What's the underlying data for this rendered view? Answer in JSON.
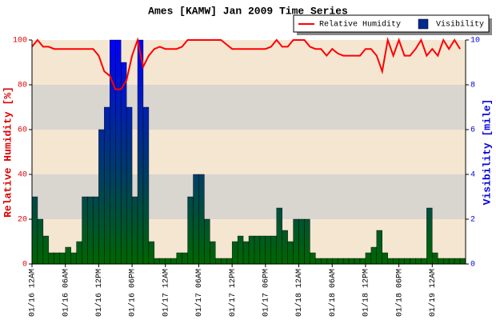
{
  "chart_data": {
    "type": "combo",
    "title": "Ames [KAMW] Jan 2009 Time Series",
    "ylabel": "Relative Humidity [%]",
    "y2label": "Visibility [mile]",
    "x": [
      0,
      1,
      2,
      3,
      4,
      5,
      6,
      7,
      8,
      9,
      10,
      11,
      12,
      13,
      14,
      15,
      16,
      17,
      18,
      19,
      20,
      21,
      22,
      23,
      24,
      25,
      26,
      27,
      28,
      29,
      30,
      31,
      32,
      33,
      34,
      35,
      36,
      37,
      38,
      39,
      40,
      41,
      42,
      43,
      44,
      45,
      46,
      47,
      48,
      49,
      50,
      51,
      52,
      53,
      54,
      55,
      56,
      57,
      58,
      59,
      60,
      61,
      62,
      63,
      64,
      65,
      66,
      67,
      68,
      69,
      70,
      71,
      72,
      73,
      74,
      75,
      76,
      77
    ],
    "xlim": [
      0,
      78
    ],
    "xticks": [
      {
        "value": 0,
        "label": "01/16 12AM"
      },
      {
        "value": 6,
        "label": "01/16 06AM"
      },
      {
        "value": 12,
        "label": "01/16 12PM"
      },
      {
        "value": 18,
        "label": "01/16 06PM"
      },
      {
        "value": 24,
        "label": "01/17 12AM"
      },
      {
        "value": 30,
        "label": "01/17 06AM"
      },
      {
        "value": 36,
        "label": "01/17 12PM"
      },
      {
        "value": 42,
        "label": "01/17 06PM"
      },
      {
        "value": 48,
        "label": "01/18 12AM"
      },
      {
        "value": 54,
        "label": "01/18 06AM"
      },
      {
        "value": 60,
        "label": "01/18 12PM"
      },
      {
        "value": 66,
        "label": "01/18 06PM"
      },
      {
        "value": 72,
        "label": "01/19 12AM"
      }
    ],
    "ylim": [
      0,
      100
    ],
    "yticks": [
      0,
      20,
      40,
      60,
      80,
      100
    ],
    "y2lim": [
      0,
      10
    ],
    "y2ticks": [
      0,
      2,
      4,
      6,
      8,
      10
    ],
    "band_colors": [
      "#f5e6d2",
      "#d9d5cf"
    ],
    "series": [
      {
        "name": "Visibility",
        "type": "bar",
        "axis": "y2",
        "color": "#002a8c",
        "gradient": [
          "#006600",
          "#0000ff"
        ],
        "values": [
          3,
          2,
          1.25,
          0.5,
          0.5,
          0.5,
          0.75,
          0.5,
          1,
          3,
          3,
          3,
          6,
          7,
          10,
          10,
          9,
          7,
          3,
          10,
          7,
          1,
          0.25,
          0.25,
          0.25,
          0.25,
          0.5,
          0.5,
          3,
          4,
          4,
          2,
          1,
          0.25,
          0.25,
          0.25,
          1,
          1.25,
          1,
          1.25,
          1.25,
          1.25,
          1.25,
          1.25,
          2.5,
          1.5,
          1,
          2,
          2,
          2,
          0.5,
          0.25,
          0.25,
          0.25,
          0.25,
          0.25,
          0.25,
          0.25,
          0.25,
          0.25,
          0.5,
          0.75,
          1.5,
          0.5,
          0.25,
          0.25,
          0.25,
          0.25,
          0.25,
          0.25,
          0.25,
          2.5,
          0.5,
          0.25,
          0.25,
          0.25,
          0.25,
          0.25
        ]
      },
      {
        "name": "Relative Humidity",
        "type": "line",
        "color": "#ff0000",
        "values": [
          97,
          100,
          97,
          97,
          96,
          96,
          96,
          96,
          96,
          96,
          96,
          96,
          93,
          86,
          84,
          78,
          78,
          82,
          93,
          100,
          88,
          93,
          96,
          97,
          96,
          96,
          96,
          97,
          100,
          100,
          100,
          100,
          100,
          100,
          100,
          98,
          96,
          96,
          96,
          96,
          96,
          96,
          96,
          97,
          100,
          97,
          97,
          100,
          100,
          100,
          97,
          96,
          96,
          93,
          96,
          94,
          93,
          93,
          93,
          93,
          96,
          96,
          93,
          86,
          100,
          93,
          100,
          93,
          93,
          96,
          100,
          93,
          96,
          93,
          100,
          96,
          100,
          96
        ]
      }
    ]
  }
}
